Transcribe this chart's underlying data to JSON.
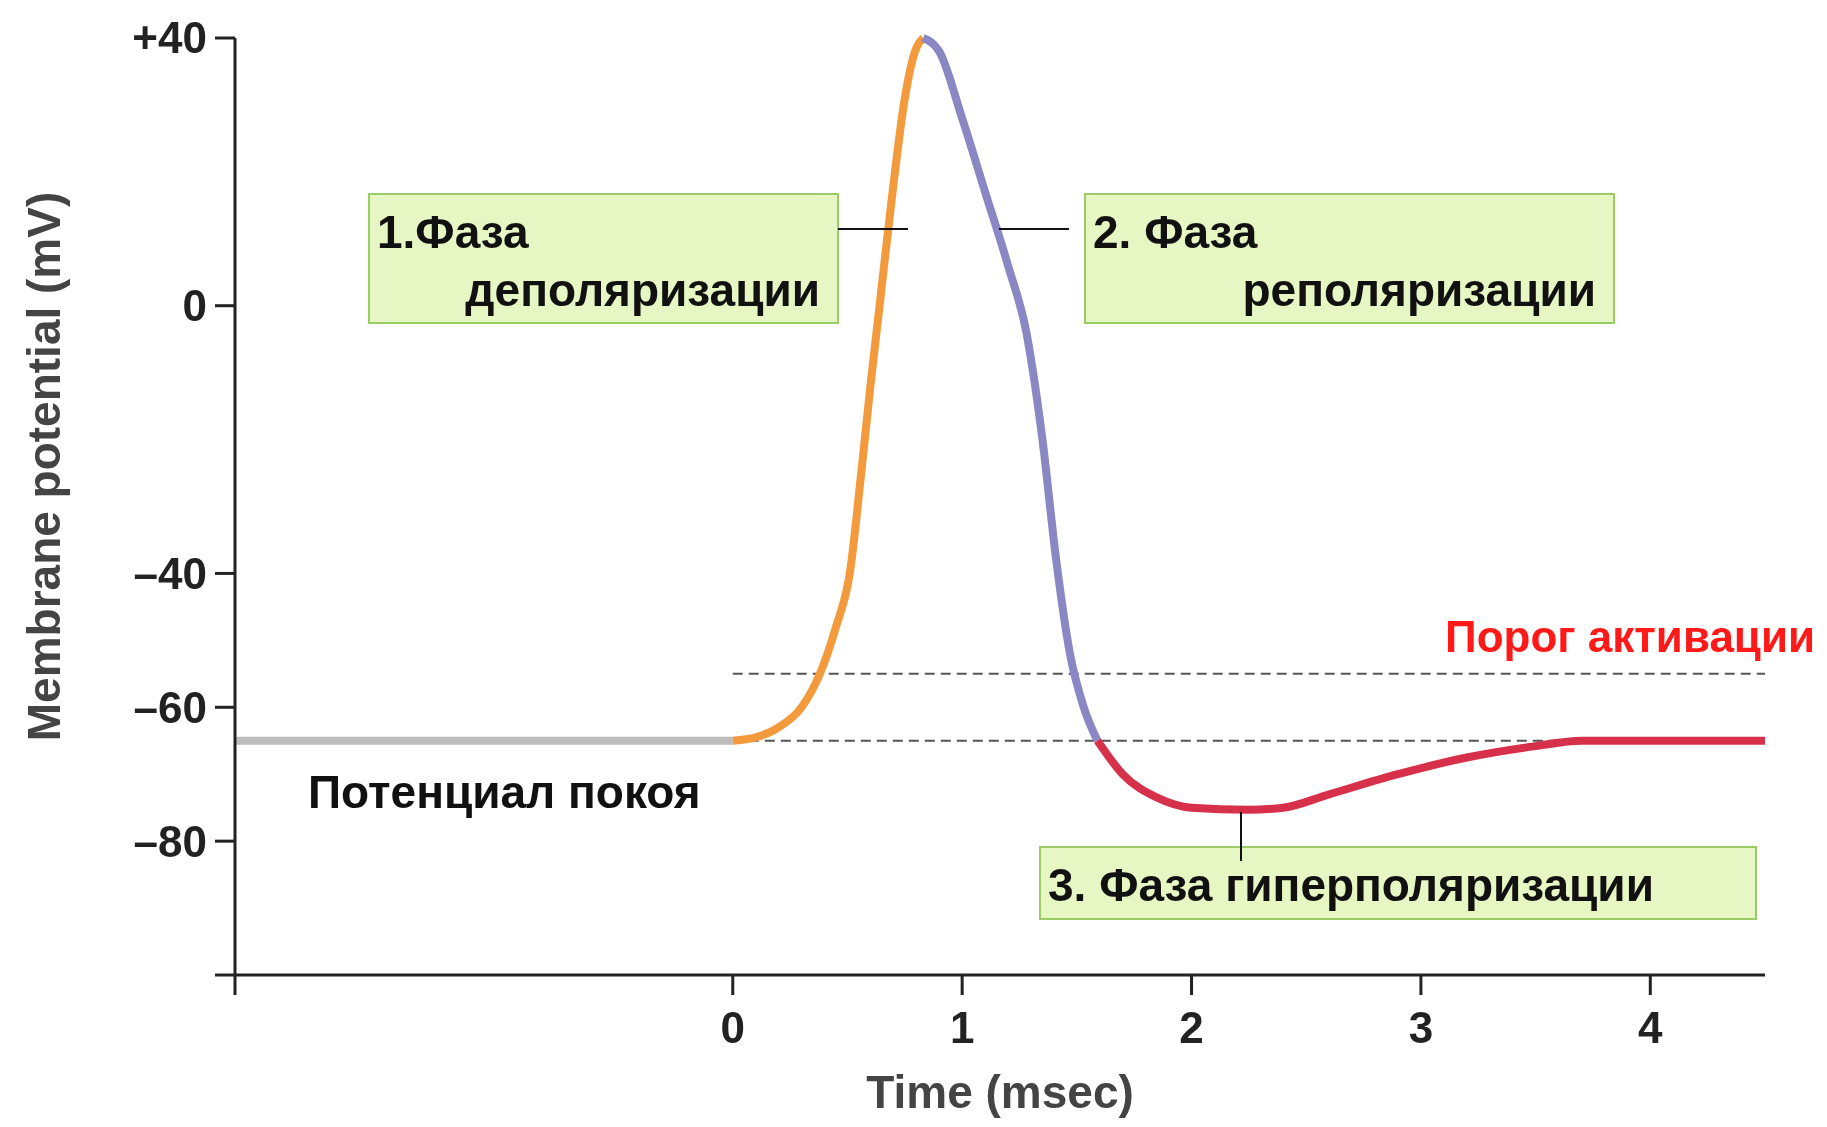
{
  "chart_data": {
    "type": "line",
    "xlabel": "Time (msec)",
    "ylabel": "Membrane potential (mV)",
    "xlim": [
      -2.17,
      4.5
    ],
    "xticks": [
      {
        "value": -2.17,
        "label": null
      },
      0,
      1,
      2,
      3,
      4
    ],
    "ylim": [
      -100,
      40
    ],
    "yticks": [
      {
        "value": -100,
        "label": null
      },
      {
        "value": -80,
        "label": "–80"
      },
      {
        "value": -60,
        "label": "–60"
      },
      {
        "value": -40,
        "label": "–40"
      },
      0,
      {
        "value": 40,
        "label": "+40"
      }
    ],
    "grid": false,
    "marker": "none",
    "line_style": "solid",
    "series": [
      {
        "name": "Потенциал покоя",
        "color": "#bdbdbd",
        "x": [
          -2.17,
          0
        ],
        "values": [
          -65,
          -65
        ]
      },
      {
        "name": "1.Фаза деполяризации",
        "color": "#f39a3c",
        "x": [
          0,
          0.1,
          0.2,
          0.3,
          0.38,
          0.45,
          0.51,
          0.56,
          0.6,
          0.64,
          0.7,
          0.75,
          0.8,
          0.83
        ],
        "values": [
          -65,
          -64.5,
          -63,
          -60,
          -55,
          -48,
          -40,
          -25,
          -12,
          0,
          18,
          31,
          38.5,
          40
        ]
      },
      {
        "name": "2. Фаза реполяризации",
        "color": "#8b86c4",
        "x": [
          0.83,
          0.9,
          1.0,
          1.1,
          1.2,
          1.28,
          1.35,
          1.41,
          1.47,
          1.53,
          1.59
        ],
        "values": [
          40,
          38,
          28,
          17,
          6,
          -4,
          -20,
          -38,
          -52,
          -60,
          -65
        ]
      },
      {
        "name": "3. Фаза гиперполяризации",
        "color": "#d6304a",
        "x": [
          1.59,
          1.7,
          1.85,
          2.0,
          2.25,
          2.4,
          2.6,
          2.9,
          3.2,
          3.5,
          3.7,
          4.5
        ],
        "values": [
          -65,
          -70,
          -73.5,
          -75,
          -75.3,
          -75,
          -73,
          -70,
          -67.5,
          -65.8,
          -65,
          -65
        ]
      }
    ],
    "ref_lines": [
      {
        "axis": "y",
        "value": -55,
        "label": "Порог активации",
        "color": "#555555",
        "line_style": "dashed"
      },
      {
        "axis": "y",
        "value": -65,
        "label": null,
        "color": "#555555",
        "line_style": "dashed"
      }
    ]
  }
}
